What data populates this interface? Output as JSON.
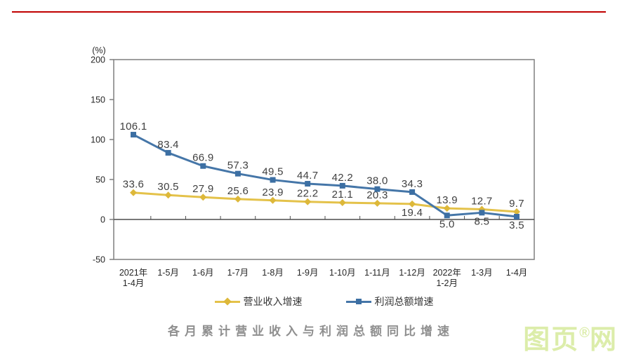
{
  "page": {
    "top_rule_color": "#c00000"
  },
  "caption": {
    "text": "各月累计营业收入与利润总额同比增速"
  },
  "watermark": {
    "prefix": "图页",
    "registered": "®",
    "suffix": "网",
    "color": "#dcedaa"
  },
  "chart_data": {
    "type": "line",
    "title": "各月累计营业收入与利润总额同比增速",
    "unit_label": "(%)",
    "categories": [
      "2021年\n1-4月",
      "1-5月",
      "1-6月",
      "1-7月",
      "1-8月",
      "1-9月",
      "1-10月",
      "1-11月",
      "1-12月",
      "2022年\n1-2月",
      "1-3月",
      "1-4月"
    ],
    "series": [
      {
        "name": "营业收入增速",
        "color": "#e4c24a",
        "marker": "diamond",
        "marker_color": "#ddb83a",
        "values": [
          33.6,
          30.5,
          27.9,
          25.6,
          23.9,
          22.2,
          21.1,
          20.3,
          19.4,
          13.9,
          12.7,
          9.7
        ],
        "labels_below": [
          8
        ]
      },
      {
        "name": "利润总额增速",
        "color": "#4576a8",
        "marker": "square",
        "marker_color": "#3c6fa3",
        "values": [
          106.1,
          83.4,
          66.9,
          57.3,
          49.5,
          44.7,
          42.2,
          38.0,
          34.3,
          5.0,
          8.5,
          3.5
        ],
        "labels_below": [
          9,
          10,
          11
        ]
      }
    ],
    "ylim": [
      -50,
      200
    ],
    "ytick_step": 50,
    "grid": false,
    "legend_position": "bottom"
  }
}
